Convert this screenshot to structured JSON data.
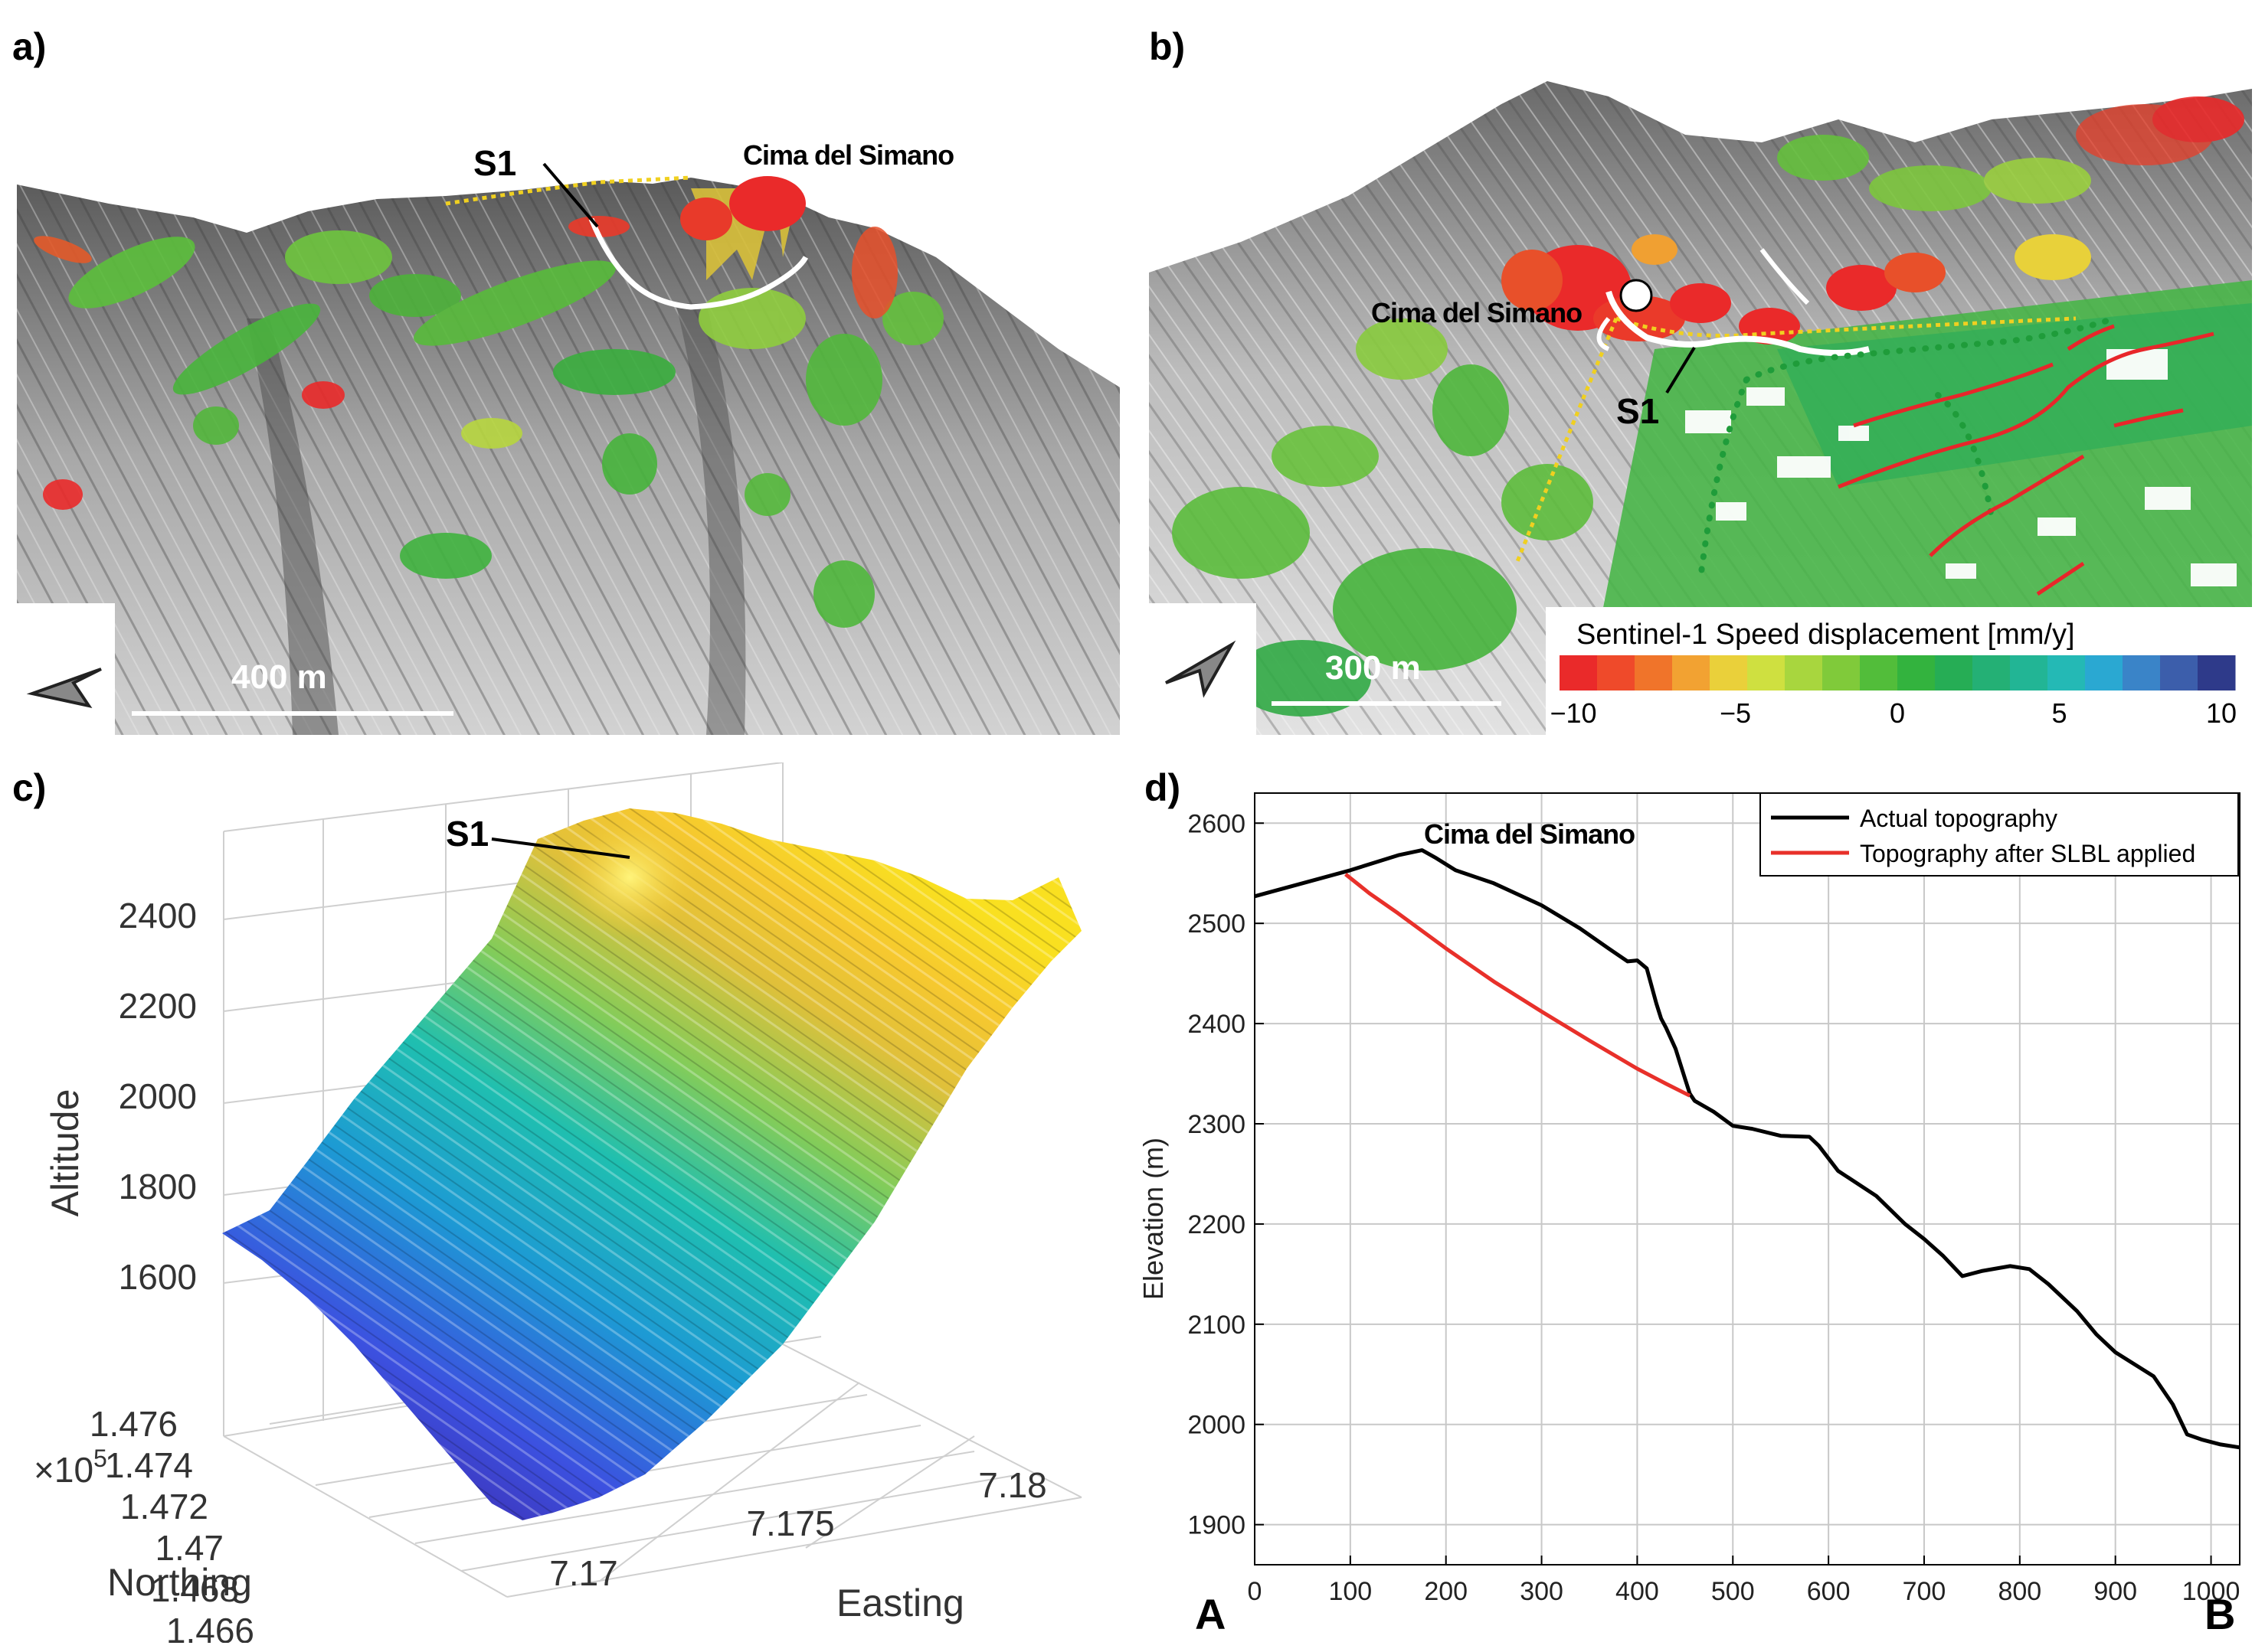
{
  "panels": {
    "a": {
      "label": "a)",
      "site_label": "Cima del Simano",
      "s1_label": "S1",
      "scale_label": "400 m",
      "north_arrow_icon": "north-arrow-icon"
    },
    "b": {
      "label": "b)",
      "site_label": "Cima del Simano",
      "s1_label": "S1",
      "scale_label": "300 m",
      "north_arrow_icon": "north-arrow-icon",
      "legend": {
        "title": "Sentinel-1 Speed displacement [mm/y]",
        "ticks": [
          "−10",
          "−5",
          "0",
          "5",
          "10"
        ],
        "tick_values": [
          -10,
          -5,
          0,
          5,
          10
        ],
        "colors": [
          "#ea2a2a",
          "#ef4a2a",
          "#f0742a",
          "#f2a232",
          "#ead03a",
          "#cfe040",
          "#a8d63e",
          "#80ca3a",
          "#52bd3a",
          "#33b33e",
          "#26ad55",
          "#24b075",
          "#22b595",
          "#24b9b5",
          "#2aa8d2",
          "#3a84c8",
          "#3c5eab",
          "#2e3a8a"
        ]
      },
      "colors": {
        "site_marker": "#ffffff",
        "outline": "#ffffff",
        "scarp_lines": "#e8262a",
        "dotted_boundary": "#1f9c3a"
      }
    },
    "c": {
      "label": "c)",
      "s1_label": "S1",
      "zlabel": "Altitude",
      "ylabel": "Northing",
      "xlabel": "Easting",
      "y_exponent": "×10",
      "y_exponent_power": "5",
      "z_ticks": [
        "2400",
        "2200",
        "2000",
        "1800",
        "1600"
      ],
      "y_ticks": [
        "1.476",
        "1.474",
        "1.472",
        "1.47",
        "1.468",
        "1.466"
      ],
      "x_ticks": [
        "7.17",
        "7.175",
        "7.18"
      ],
      "colormap": "parula"
    },
    "d": {
      "label": "d)",
      "site_label": "Cima del Simano",
      "end_a": "A",
      "end_b": "B"
    }
  },
  "chart_data": {
    "type": "line",
    "title": "",
    "xlabel": "",
    "ylabel": "Elevation (m)",
    "xlim": [
      0,
      1030
    ],
    "ylim": [
      1860,
      2630
    ],
    "x_ticks": [
      0,
      100,
      200,
      300,
      400,
      500,
      600,
      700,
      800,
      900,
      1000
    ],
    "y_ticks": [
      1900,
      2000,
      2100,
      2200,
      2300,
      2400,
      2500,
      2600
    ],
    "grid": true,
    "legend_position": "top-right",
    "series": [
      {
        "name": "Actual topography",
        "color": "#000000",
        "x": [
          0,
          50,
          100,
          150,
          175,
          190,
          210,
          250,
          300,
          340,
          370,
          390,
          400,
          410,
          420,
          425,
          430,
          440,
          450,
          455,
          460,
          480,
          500,
          520,
          550,
          580,
          590,
          610,
          650,
          680,
          700,
          720,
          740,
          760,
          790,
          810,
          830,
          860,
          880,
          900,
          940,
          960,
          975,
          990,
          1010,
          1030
        ],
        "y": [
          2527,
          2540,
          2553,
          2568,
          2573,
          2565,
          2553,
          2540,
          2518,
          2495,
          2475,
          2462,
          2463,
          2455,
          2420,
          2405,
          2396,
          2375,
          2345,
          2330,
          2323,
          2312,
          2298,
          2295,
          2288,
          2287,
          2278,
          2253,
          2228,
          2200,
          2185,
          2168,
          2148,
          2153,
          2158,
          2155,
          2140,
          2113,
          2090,
          2072,
          2048,
          2020,
          1990,
          1985,
          1980,
          1977
        ]
      },
      {
        "name": "Topography after SLBL applied",
        "color": "#e8302a",
        "x": [
          95,
          120,
          150,
          200,
          250,
          300,
          350,
          400,
          430,
          455
        ],
        "y": [
          2549,
          2530,
          2510,
          2475,
          2442,
          2412,
          2383,
          2355,
          2340,
          2328
        ]
      }
    ]
  }
}
